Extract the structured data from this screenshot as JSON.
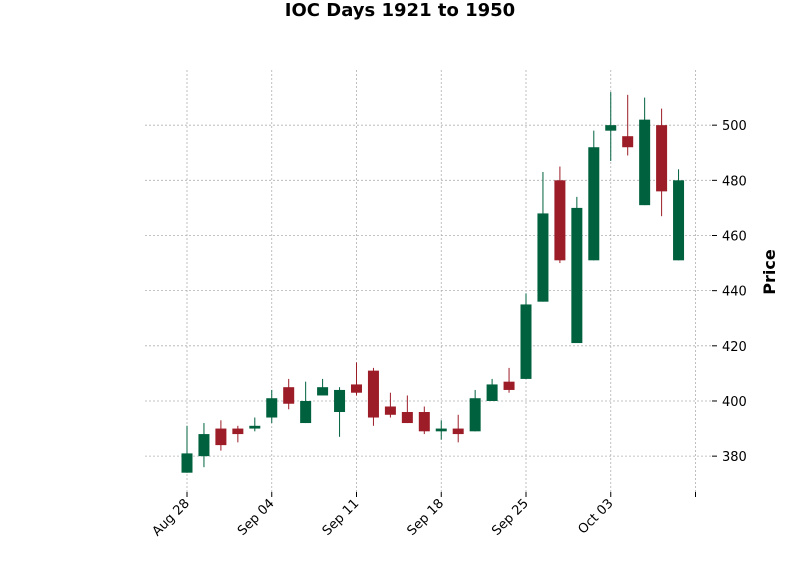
{
  "chart_data": {
    "type": "candlestick",
    "title": "IOC Days 1921 to 1950",
    "xlabel": "",
    "ylabel": "Price",
    "ylim": [
      367,
      520
    ],
    "y_ticks": [
      380,
      400,
      420,
      440,
      460,
      480,
      500
    ],
    "x_tick_labels": [
      {
        "index": 0,
        "label": "Aug 28"
      },
      {
        "index": 5,
        "label": "Sep 04"
      },
      {
        "index": 10,
        "label": "Sep 11"
      },
      {
        "index": 15,
        "label": "Sep 18"
      },
      {
        "index": 20,
        "label": "Sep 25"
      },
      {
        "index": 25,
        "label": "Oct 03"
      },
      {
        "index": 30,
        "label": ""
      }
    ],
    "grid": true,
    "colors": {
      "up": "#00613e",
      "down": "#9c1c27",
      "grid": "#b0b0b0"
    },
    "candles": [
      {
        "open": 374,
        "high": 391,
        "low": 374,
        "close": 381
      },
      {
        "open": 380,
        "high": 392,
        "low": 376,
        "close": 388
      },
      {
        "open": 390,
        "high": 393,
        "low": 382,
        "close": 384
      },
      {
        "open": 390,
        "high": 391,
        "low": 385,
        "close": 388
      },
      {
        "open": 390,
        "high": 394,
        "low": 389,
        "close": 391
      },
      {
        "open": 394,
        "high": 404,
        "low": 392,
        "close": 401
      },
      {
        "open": 405,
        "high": 408,
        "low": 397,
        "close": 399
      },
      {
        "open": 392,
        "high": 407,
        "low": 392,
        "close": 400
      },
      {
        "open": 402,
        "high": 408,
        "low": 402,
        "close": 405
      },
      {
        "open": 396,
        "high": 405,
        "low": 387,
        "close": 404
      },
      {
        "open": 406,
        "high": 414,
        "low": 402,
        "close": 403
      },
      {
        "open": 411,
        "high": 412,
        "low": 391,
        "close": 394
      },
      {
        "open": 398,
        "high": 403,
        "low": 394,
        "close": 395
      },
      {
        "open": 396,
        "high": 402,
        "low": 392,
        "close": 392
      },
      {
        "open": 396,
        "high": 398,
        "low": 388,
        "close": 389
      },
      {
        "open": 389,
        "high": 393,
        "low": 386,
        "close": 390
      },
      {
        "open": 390,
        "high": 395,
        "low": 385,
        "close": 388
      },
      {
        "open": 389,
        "high": 404,
        "low": 389,
        "close": 401
      },
      {
        "open": 400,
        "high": 408,
        "low": 400,
        "close": 406
      },
      {
        "open": 407,
        "high": 412,
        "low": 403,
        "close": 404
      },
      {
        "open": 408,
        "high": 439,
        "low": 408,
        "close": 435
      },
      {
        "open": 436,
        "high": 483,
        "low": 436,
        "close": 468
      },
      {
        "open": 480,
        "high": 485,
        "low": 450,
        "close": 451
      },
      {
        "open": 421,
        "high": 474,
        "low": 421,
        "close": 470
      },
      {
        "open": 451,
        "high": 498,
        "low": 451,
        "close": 492
      },
      {
        "open": 498,
        "high": 512,
        "low": 487,
        "close": 500
      },
      {
        "open": 496,
        "high": 511,
        "low": 489,
        "close": 492
      },
      {
        "open": 471,
        "high": 510,
        "low": 471,
        "close": 502
      },
      {
        "open": 500,
        "high": 506,
        "low": 467,
        "close": 476
      },
      {
        "open": 451,
        "high": 484,
        "low": 451,
        "close": 480
      }
    ]
  }
}
